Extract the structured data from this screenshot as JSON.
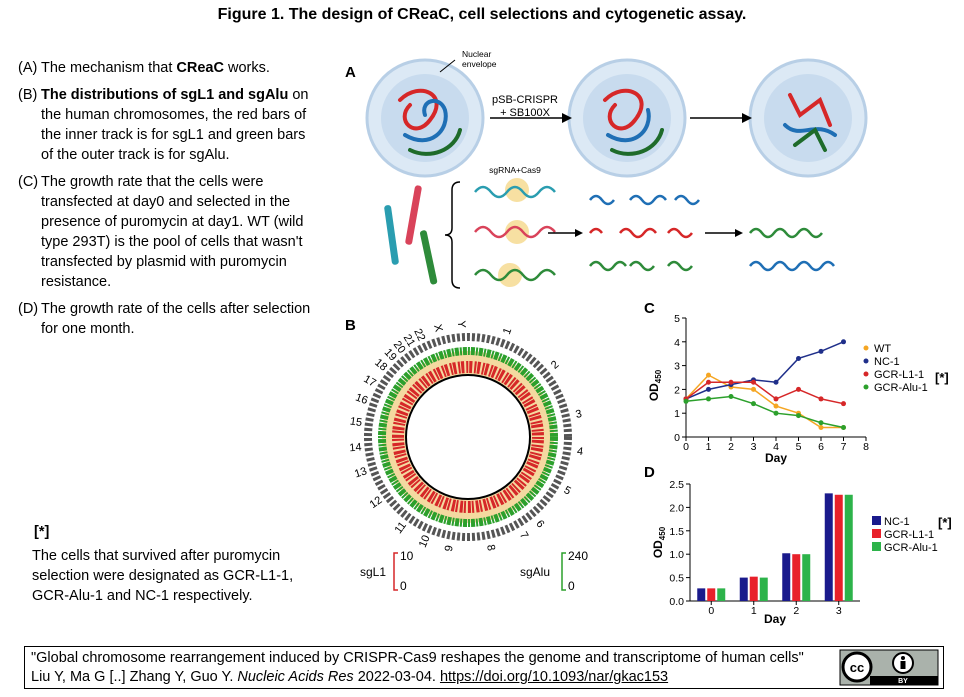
{
  "title": "Figure 1. The design of CReaC, cell selections and cytogenetic assay.",
  "captions": [
    {
      "label": "(A)",
      "parts": [
        {
          "text": "The mechanism that "
        },
        {
          "text": "CReaC",
          "bold": true
        },
        {
          "text": " works."
        }
      ]
    },
    {
      "label": "(B)",
      "parts": [
        {
          "text": "The distributions of sgL1 and sgAlu",
          "bold": true
        },
        {
          "text": " on the human chromosomes, the red bars of the inner track is for sgL1 and green bars of the outer track is for sgAlu."
        }
      ]
    },
    {
      "label": "(C)",
      "parts": [
        {
          "text": "The growth rate that the cells were transfected at day0 and selected in the presence of puromycin at day1. WT (wild type 293T) is the pool of cells that wasn't transfected by plasmid with puromycin resistance."
        }
      ]
    },
    {
      "label": "(D)",
      "parts": [
        {
          "text": "The growth rate of the cells after selection for one month."
        }
      ]
    }
  ],
  "note": {
    "marker": "[*]",
    "text": "The cells that survived after puromycin selection were designated as GCR-L1-1, GCR-Alu-1 and NC-1 respectively."
  },
  "panel_a": {
    "letter": "A",
    "envelope": [
      "Nuclear",
      "envelope"
    ],
    "transfection": [
      "pSB-CRISPR",
      "+ SB100X"
    ],
    "cas9": "sgRNA+Cas9"
  },
  "panel_b": {
    "letter": "B",
    "chromosomes": [
      "1",
      "2",
      "3",
      "4",
      "5",
      "6",
      "7",
      "8",
      "9",
      "10",
      "11",
      "12",
      "13",
      "14",
      "15",
      "16",
      "17",
      "18",
      "19",
      "20",
      "21",
      "22",
      "X",
      "Y"
    ],
    "sgl1": {
      "name": "sgL1",
      "max": "10",
      "min": "0"
    },
    "sgalu": {
      "name": "sgAlu",
      "max": "240",
      "min": "0"
    }
  },
  "chart_data": [
    {
      "type": "line",
      "panel": "C",
      "x_label": "Day",
      "y_label": "OD",
      "y_label_sub": "450",
      "annotation": "[*]",
      "x": [
        0,
        1,
        2,
        3,
        4,
        5,
        6,
        7
      ],
      "xlim": [
        0,
        8
      ],
      "xticks": [
        0,
        1,
        2,
        3,
        4,
        5,
        6,
        7,
        8
      ],
      "ylim": [
        0,
        5
      ],
      "yticks": [
        0,
        1,
        2,
        3,
        4,
        5
      ],
      "series": [
        {
          "name": "WT",
          "color": "#f5a623",
          "values": [
            1.6,
            2.6,
            2.1,
            2.0,
            1.3,
            1.0,
            0.4,
            0.4
          ]
        },
        {
          "name": "NC-1",
          "color": "#1f2f8a",
          "values": [
            1.6,
            2.0,
            2.2,
            2.4,
            2.3,
            3.3,
            3.6,
            4.0
          ]
        },
        {
          "name": "GCR-L1-1",
          "color": "#d62728",
          "values": [
            1.6,
            2.3,
            2.3,
            2.3,
            1.6,
            2.0,
            1.6,
            1.4
          ]
        },
        {
          "name": "GCR-Alu-1",
          "color": "#2ca02c",
          "values": [
            1.5,
            1.6,
            1.7,
            1.4,
            1.0,
            0.9,
            0.6,
            0.4
          ]
        }
      ]
    },
    {
      "type": "bar",
      "panel": "D",
      "x_label": "Day",
      "y_label": "OD",
      "y_label_sub": "450",
      "annotation": "[*]",
      "categories": [
        "0",
        "1",
        "2",
        "3"
      ],
      "ylim": [
        0,
        2.5
      ],
      "yticks": [
        {
          "value": 0,
          "label": "0.0"
        },
        0.5,
        {
          "value": 1,
          "label": "1.0"
        },
        1.5,
        {
          "value": 2,
          "label": "2.0"
        },
        2.5
      ],
      "series": [
        {
          "name": "NC-1",
          "color": "#1a1a8c",
          "values": [
            0.27,
            0.5,
            1.02,
            2.3
          ]
        },
        {
          "name": "GCR-L1-1",
          "color": "#e8202a",
          "values": [
            0.27,
            0.52,
            1.0,
            2.27
          ]
        },
        {
          "name": "GCR-Alu-1",
          "color": "#2db34a",
          "values": [
            0.27,
            0.5,
            1.0,
            2.27
          ]
        }
      ]
    }
  ],
  "citation": {
    "quote": "\"Global chromosome rearrangement induced by CRISPR-Cas9 reshapes the genome and transcriptome of human cells\"",
    "authors": "Liu Y, Ma G [..] Zhang Y, Guo Y. ",
    "journal": "Nucleic Acids Res",
    "date": " 2022-03-04. ",
    "doi": "https://doi.org/10.1093/nar/gkac153",
    "license_badge": "BY"
  }
}
